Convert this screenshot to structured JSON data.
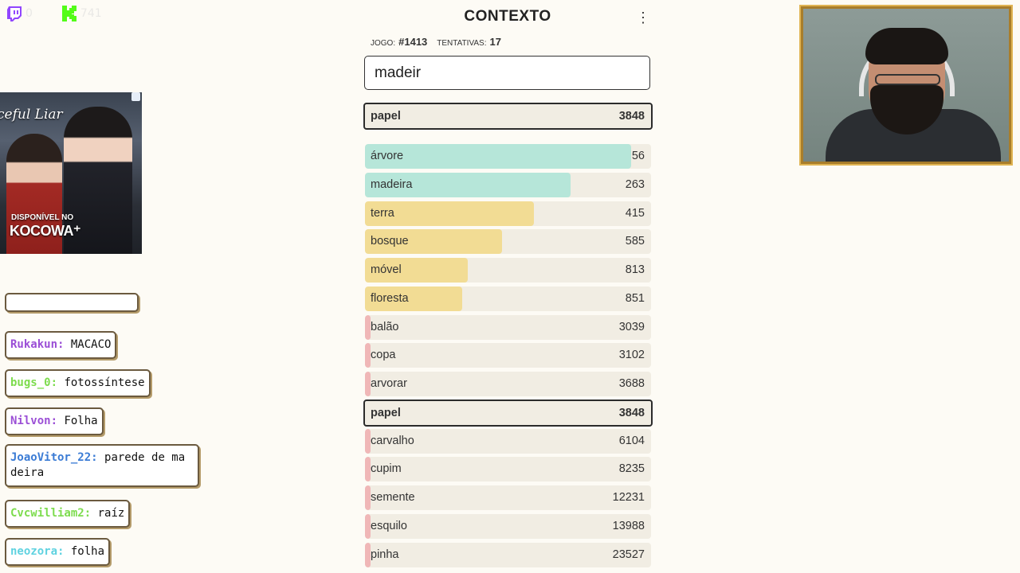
{
  "stream": {
    "twitch_count": "0",
    "kick_count": "741"
  },
  "ad": {
    "title": "ceful Liar",
    "sub": "DISPONÍVEL NO",
    "brand": "KOCOWA⁺"
  },
  "chat": {
    "messages": [
      {
        "user": "Rukakun:",
        "text": "MACACO",
        "color": "#9b4fd6"
      },
      {
        "user": "bugs_0:",
        "text": "fotossíntese",
        "color": "#7ddc4e"
      },
      {
        "user": "Nilvon:",
        "text": "Folha",
        "color": "#9b4fd6"
      },
      {
        "user": "JoaoVitor_22:",
        "text": "parede de ma deira",
        "color": "#3a7bd5"
      },
      {
        "user": "Cvcwilliam2:",
        "text": "raíz",
        "color": "#7ddc4e"
      },
      {
        "user": "neozora:",
        "text": "folha",
        "color": "#5fd2e0"
      }
    ]
  },
  "game": {
    "title": "CONTEXTO",
    "menu_glyph": "⋮",
    "game_label": "JOGO:",
    "game_value": "#1413",
    "tries_label": "TENTATIVAS:",
    "tries_value": "17",
    "input_value": "madeir",
    "current": {
      "word": "papel",
      "distance": "3848"
    },
    "guesses": [
      {
        "word": "árvore",
        "distance": "56",
        "fill": 0.93,
        "color": "#b6e6d9"
      },
      {
        "word": "madeira",
        "distance": "263",
        "fill": 0.72,
        "color": "#b6e6d9"
      },
      {
        "word": "terra",
        "distance": "415",
        "fill": 0.59,
        "color": "#f2dc94"
      },
      {
        "word": "bosque",
        "distance": "585",
        "fill": 0.48,
        "color": "#f2dc94"
      },
      {
        "word": "móvel",
        "distance": "813",
        "fill": 0.36,
        "color": "#f2dc94"
      },
      {
        "word": "floresta",
        "distance": "851",
        "fill": 0.34,
        "color": "#f2dc94"
      },
      {
        "word": "balão",
        "distance": "3039",
        "fill": 0.02,
        "color": "#f0b7b7"
      },
      {
        "word": "copa",
        "distance": "3102",
        "fill": 0.02,
        "color": "#f0b7b7"
      },
      {
        "word": "arvorar",
        "distance": "3688",
        "fill": 0.02,
        "color": "#f0b7b7"
      },
      {
        "word": "papel",
        "distance": "3848",
        "fill": 0.0,
        "color": "#f0b7b7",
        "current": true
      },
      {
        "word": "carvalho",
        "distance": "6104",
        "fill": 0.02,
        "color": "#f0b7b7"
      },
      {
        "word": "cupim",
        "distance": "8235",
        "fill": 0.02,
        "color": "#f0b7b7"
      },
      {
        "word": "semente",
        "distance": "12231",
        "fill": 0.02,
        "color": "#f0b7b7"
      },
      {
        "word": "esquilo",
        "distance": "13988",
        "fill": 0.02,
        "color": "#f0b7b7"
      },
      {
        "word": "pinha",
        "distance": "23527",
        "fill": 0.02,
        "color": "#f0b7b7"
      }
    ]
  }
}
